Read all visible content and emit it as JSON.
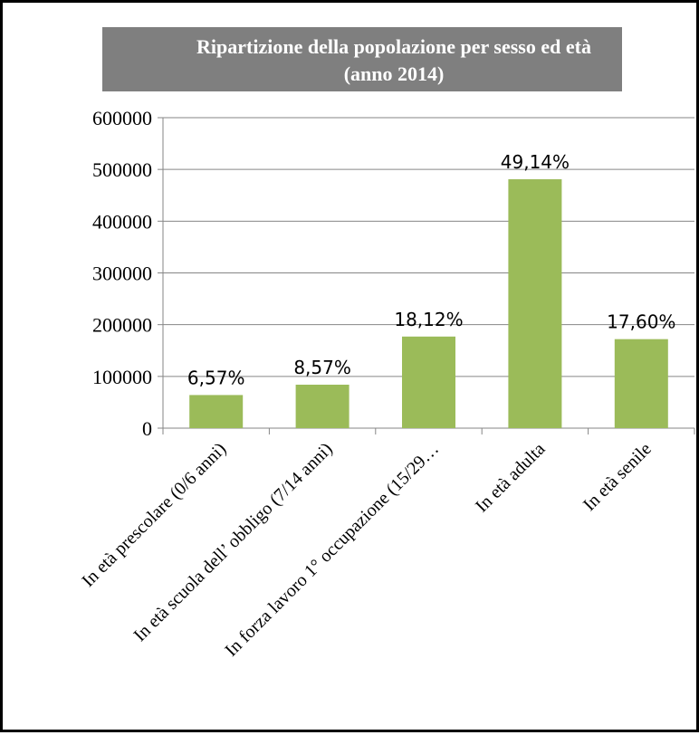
{
  "chart_data": {
    "type": "bar",
    "title_line1": "Ripartizione della popolazione per sesso ed età",
    "title_line2": "(anno 2014)",
    "title_bg": "#7f7f7f",
    "bar_color": "#9bbb59",
    "categories": [
      "In età prescolare (0/6 anni)",
      "In età scuola dell’ obbligo (7/14 anni)",
      "In forza lavoro 1° occupazione (15/29…",
      "In età adulta",
      "In età senile"
    ],
    "values": [
      64000,
      84000,
      177000,
      481000,
      172000
    ],
    "data_labels": [
      "6,57%",
      "8,57%",
      "18,12%",
      "49,14%",
      "17,60%"
    ],
    "ylim": [
      0,
      600000
    ],
    "yticks": [
      "0",
      "100000",
      "200000",
      "300000",
      "400000",
      "500000",
      "600000"
    ],
    "xlabel": "",
    "ylabel": "",
    "grid": true,
    "legend": false
  }
}
